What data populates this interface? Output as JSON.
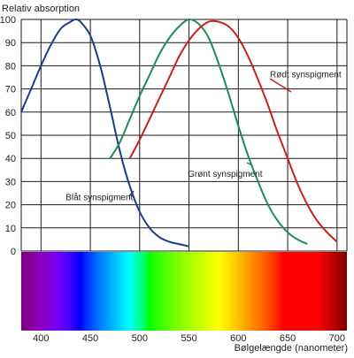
{
  "chart_data": {
    "type": "line",
    "ylabel": "Relativ absorption",
    "xlabel": "Bølgelængde (nanometer)",
    "xlim": [
      380,
      710
    ],
    "ylim": [
      0,
      100
    ],
    "grid": true,
    "x_ticks": [
      400,
      450,
      500,
      550,
      600,
      650,
      700
    ],
    "y_ticks": [
      0,
      10,
      20,
      30,
      40,
      50,
      60,
      70,
      80,
      90,
      100
    ],
    "x_tick_labels": [
      "400",
      "450",
      "500",
      "550",
      "600",
      "650",
      "700"
    ],
    "y_tick_labels": [
      "0",
      "10",
      "20",
      "30",
      "40",
      "50",
      "60",
      "70",
      "80",
      "90",
      "100"
    ],
    "spectrum_bar": true,
    "series": [
      {
        "name": "Blåt synspigment",
        "color": "#1f3a8a",
        "x": [
          380,
          390,
          400,
          410,
          420,
          430,
          435,
          440,
          450,
          460,
          470,
          480,
          490,
          500,
          510,
          520,
          530,
          540,
          550
        ],
        "y": [
          60,
          70,
          80,
          89,
          96,
          99,
          100,
          99,
          93,
          80,
          62,
          43,
          28,
          17,
          10,
          6,
          4,
          3,
          2
        ]
      },
      {
        "name": "Grønt synspigment",
        "color": "#1f8a5a",
        "x": [
          470,
          480,
          490,
          500,
          510,
          520,
          530,
          540,
          550,
          560,
          570,
          580,
          590,
          600,
          610,
          620,
          630,
          640,
          650,
          660,
          670
        ],
        "y": [
          40,
          47,
          57,
          67,
          76,
          85,
          92,
          97,
          100,
          98,
          92,
          81,
          68,
          54,
          41,
          30,
          20,
          13,
          8,
          5,
          3
        ]
      },
      {
        "name": "Rødt synspigment",
        "color": "#c8201e",
        "x": [
          490,
          500,
          510,
          520,
          530,
          540,
          550,
          560,
          570,
          580,
          590,
          600,
          610,
          620,
          630,
          640,
          650,
          660,
          670,
          680,
          690,
          700
        ],
        "y": [
          40,
          48,
          57,
          66,
          75,
          84,
          91,
          96,
          99,
          99,
          97,
          92,
          84,
          74,
          63,
          51,
          40,
          29,
          20,
          13,
          8,
          4
        ]
      }
    ],
    "annotations": [
      {
        "text": "Rødt synspigment",
        "series": 2,
        "x": 632,
        "y": 75
      },
      {
        "text": "Grønt synspigment",
        "series": 1,
        "x": 524,
        "y": 32
      },
      {
        "text": "Blåt synspigment",
        "series": 0,
        "x": 425,
        "y": 22
      }
    ]
  }
}
